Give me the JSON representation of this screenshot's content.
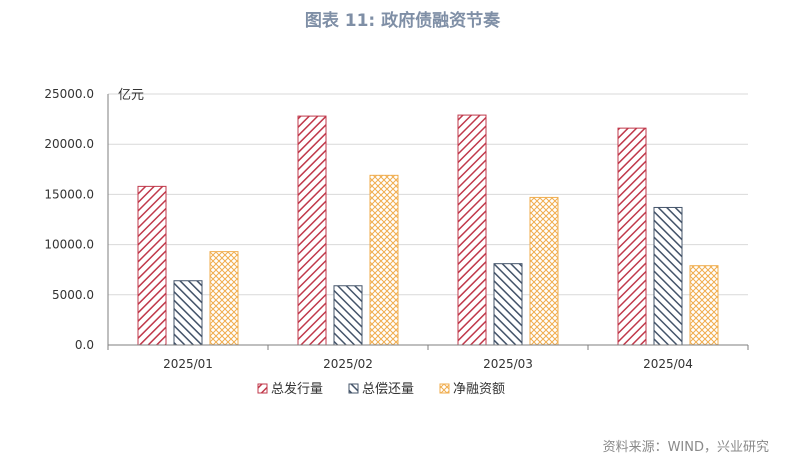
{
  "figure": {
    "title": "图表 11: 政府债融资节奏",
    "source": "资料来源：WIND，兴业研究"
  },
  "chart_data": {
    "type": "bar",
    "unit_label": "亿元",
    "categories": [
      "2025/01",
      "2025/02",
      "2025/03",
      "2025/04"
    ],
    "series": [
      {
        "name": "总发行量",
        "values": [
          15800,
          22800,
          22900,
          21600
        ],
        "color": "#c0394b",
        "pattern": "diag-down"
      },
      {
        "name": "总偿还量",
        "values": [
          6400,
          5900,
          8100,
          13700
        ],
        "color": "#44546a",
        "pattern": "diag-up"
      },
      {
        "name": "净融资额",
        "values": [
          9300,
          16900,
          14700,
          7900
        ],
        "color": "#f0ad4e",
        "pattern": "cross"
      }
    ],
    "y_ticks": [
      "0.0",
      "5000.0",
      "10000.0",
      "15000.0",
      "20000.0",
      "25000.0"
    ],
    "ylim": [
      0,
      25000
    ],
    "grid": true,
    "legend_position": "bottom"
  }
}
